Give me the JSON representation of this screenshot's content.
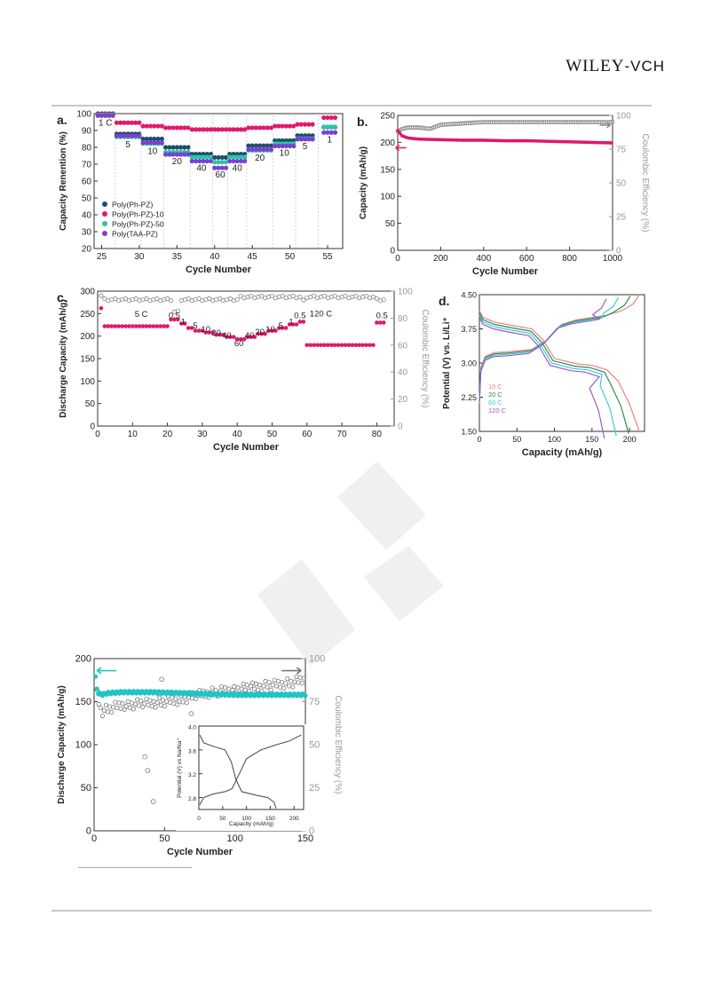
{
  "header": {
    "publisher_main": "WILEY",
    "publisher_suffix": "-VCH"
  },
  "figures": {
    "a": {
      "chart_data": {
        "type": "scatter",
        "panel_label": "a.",
        "xlabel": "Cycle Number",
        "ylabel": "Capacity Renention (%)",
        "xlim": [
          24,
          57
        ],
        "ylim": [
          20,
          100
        ],
        "xticks": [
          "25",
          "30",
          "35",
          "40",
          "45",
          "50",
          "55"
        ],
        "yticks": [
          "20",
          "30",
          "40",
          "50",
          "60",
          "70",
          "80",
          "90",
          "100"
        ],
        "rate_labels": [
          "1 C",
          "5",
          "10",
          "20",
          "40",
          "60",
          "40",
          "20",
          "10",
          "5",
          "1"
        ],
        "segments": [
          {
            "label": "1 C",
            "start": 24.5,
            "end": 26.5,
            "level": [
              100,
              100,
              100,
              100
            ]
          },
          {
            "label": "5",
            "start": 27,
            "end": 30,
            "level": [
              88,
              95,
              87,
              88
            ]
          },
          {
            "label": "10",
            "start": 30.5,
            "end": 33,
            "level": [
              85,
              93,
              83,
              84
            ]
          },
          {
            "label": "20",
            "start": 33.5,
            "end": 36.5,
            "level": [
              80,
              92,
              78,
              77
            ]
          },
          {
            "label": "40",
            "start": 37,
            "end": 39.5,
            "level": [
              76,
              91,
              75,
              73
            ]
          },
          {
            "label": "60",
            "start": 40,
            "end": 41.5,
            "level": [
              74,
              91,
              72,
              69
            ]
          },
          {
            "label": "40",
            "start": 42,
            "end": 44,
            "level": [
              76,
              91,
              75,
              73
            ]
          },
          {
            "label": "20",
            "start": 44.5,
            "end": 47.5,
            "level": [
              81,
              92,
              79,
              80
            ]
          },
          {
            "label": "10",
            "start": 48,
            "end": 50.5,
            "level": [
              84,
              93,
              83,
              82
            ]
          },
          {
            "label": "5",
            "start": 51,
            "end": 53,
            "level": [
              87,
              94,
              86,
              86
            ]
          },
          {
            "label": "1",
            "start": 54.5,
            "end": 56,
            "level": [
              92,
              98,
              93,
              90
            ]
          }
        ],
        "series": [
          {
            "name": "Poly(Ph-PZ)",
            "color": "#1f4e6b"
          },
          {
            "name": "Poly(Ph-PZ)-10",
            "color": "#e0196a"
          },
          {
            "name": "Poly(Ph-PZ)-50",
            "color": "#2ec4a6"
          },
          {
            "name": "Poly(TAA-PZ)",
            "color": "#7a3fd1"
          }
        ],
        "legend": "bottom-left"
      }
    },
    "b": {
      "chart_data": {
        "type": "scatter",
        "panel_label": "b.",
        "xlabel": "Cycle Number",
        "ylabel": "Capacity (mAh/g)",
        "ylabel_right": "Coulombic Efficiency (%)",
        "xlim": [
          0,
          1000
        ],
        "ylim": [
          0,
          250
        ],
        "ylim_right": [
          0,
          100
        ],
        "xticks": [
          "0",
          "200",
          "400",
          "600",
          "800",
          "1000"
        ],
        "yticks": [
          "0",
          "50",
          "100",
          "150",
          "200",
          "250"
        ],
        "yticks_right": [
          "0",
          "25",
          "50",
          "75",
          "100"
        ],
        "series": [
          {
            "name": "Capacity",
            "axis": "left",
            "color": "#e0196a",
            "x": [
              0,
              20,
              50,
              100,
              200,
              300,
              400,
              500,
              600,
              700,
              800,
              900,
              1000
            ],
            "y": [
              222,
              212,
              208,
              206,
              205,
              204,
              204,
              203,
              203,
              202,
              201,
              200,
              199
            ]
          },
          {
            "name": "Coulombic Efficiency",
            "axis": "right",
            "color": "#888888",
            "x": [
              0,
              20,
              50,
              100,
              150,
              200,
              300,
              400,
              500,
              600,
              700,
              800,
              900,
              1000
            ],
            "y": [
              88,
              90,
              91,
              91,
              90,
              93,
              94,
              95,
              95,
              95,
              95,
              95,
              95,
              95
            ]
          }
        ]
      }
    },
    "c": {
      "chart_data": {
        "type": "scatter",
        "panel_label": "c.",
        "xlabel": "Cycle Number",
        "ylabel": "Discharge Capacity (mAh/g)",
        "ylabel_right": "Coulombic Efficiency (%)",
        "xlim": [
          0,
          85
        ],
        "ylim": [
          0,
          300
        ],
        "ylim_right": [
          0,
          100
        ],
        "xticks": [
          "0",
          "10",
          "20",
          "30",
          "40",
          "50",
          "60",
          "70",
          "80"
        ],
        "yticks": [
          "0",
          "50",
          "100",
          "150",
          "200",
          "250",
          "300"
        ],
        "yticks_right": [
          "0",
          "20",
          "40",
          "60",
          "80",
          "100"
        ],
        "rate_labels": [
          "5 C",
          "0.5",
          "1",
          "5",
          "10",
          "20",
          "40",
          "60",
          "40",
          "20",
          "10",
          "5",
          "1",
          "0.5",
          "120 C",
          "0.5"
        ],
        "capacity_segments": [
          {
            "start": 1,
            "end": 1,
            "value": 262
          },
          {
            "start": 2,
            "end": 20,
            "value": 222
          },
          {
            "start": 21,
            "end": 23,
            "value": 237
          },
          {
            "start": 24,
            "end": 25,
            "value": 228
          },
          {
            "start": 26,
            "end": 27,
            "value": 218
          },
          {
            "start": 28,
            "end": 30,
            "value": 212
          },
          {
            "start": 31,
            "end": 33,
            "value": 208
          },
          {
            "start": 34,
            "end": 36,
            "value": 203
          },
          {
            "start": 37,
            "end": 39,
            "value": 198
          },
          {
            "start": 40,
            "end": 42,
            "value": 193
          },
          {
            "start": 43,
            "end": 45,
            "value": 198
          },
          {
            "start": 46,
            "end": 48,
            "value": 205
          },
          {
            "start": 49,
            "end": 51,
            "value": 212
          },
          {
            "start": 52,
            "end": 54,
            "value": 218
          },
          {
            "start": 55,
            "end": 57,
            "value": 226
          },
          {
            "start": 58,
            "end": 59,
            "value": 232
          },
          {
            "start": 60,
            "end": 79,
            "value": 180
          },
          {
            "start": 80,
            "end": 82,
            "value": 230
          }
        ],
        "ce_segments": [
          {
            "start": 1,
            "end": 1,
            "value": 96
          },
          {
            "start": 2,
            "end": 21,
            "value": 93
          },
          {
            "start": 22,
            "end": 23,
            "value": 84
          },
          {
            "start": 24,
            "end": 40,
            "value": 93
          },
          {
            "start": 41,
            "end": 58,
            "value": 95
          },
          {
            "start": 59,
            "end": 59,
            "value": 92
          },
          {
            "start": 60,
            "end": 79,
            "value": 95
          },
          {
            "start": 80,
            "end": 82,
            "value": 93
          }
        ],
        "colors": {
          "capacity": "#e0196a",
          "ce": "#888888"
        }
      }
    },
    "d": {
      "chart_data": {
        "type": "line",
        "panel_label": "d.",
        "xlabel": "Capacity (mAh/g)",
        "ylabel": "Potential (V) vs. Li/Li⁺",
        "xlim": [
          0,
          220
        ],
        "ylim": [
          1.5,
          4.5
        ],
        "xticks": [
          "0",
          "50",
          "100",
          "150",
          "200"
        ],
        "yticks": [
          "1.50",
          "2.25",
          "3.00",
          "3.75",
          "4.50"
        ],
        "series": [
          {
            "name": "10 C",
            "color": "#f08080",
            "charge_end": 213,
            "discharge_end": 213
          },
          {
            "name": "20 C",
            "color": "#2e8b57",
            "charge_end": 205,
            "discharge_end": 203
          },
          {
            "name": "60 C",
            "color": "#3ad0d0",
            "charge_end": 193,
            "discharge_end": 190
          },
          {
            "name": "120 C",
            "color": "#9b59d0",
            "charge_end": 180,
            "discharge_end": 177
          }
        ]
      }
    },
    "e": {
      "chart_data": {
        "type": "scatter",
        "xlabel": "Cycle Number",
        "ylabel": "Discharge Capacity (mAh/g)",
        "ylabel_right": "Coulombic Efficiency (%)",
        "xlim": [
          0,
          150
        ],
        "ylim": [
          0,
          200
        ],
        "ylim_right": [
          0,
          100
        ],
        "xticks": [
          "0",
          "50",
          "100",
          "150"
        ],
        "yticks": [
          "0",
          "50",
          "100",
          "150",
          "200"
        ],
        "yticks_right": [
          "0",
          "25",
          "50",
          "75",
          "100"
        ],
        "capacity": {
          "color": "#20c4c4",
          "x": [
            1,
            2,
            3,
            5,
            10,
            20,
            40,
            60,
            80,
            100,
            120,
            140,
            150
          ],
          "y": [
            178,
            165,
            160,
            158,
            160,
            161,
            161,
            160,
            159,
            158,
            158,
            158,
            158
          ]
        },
        "ce_outliers": [
          {
            "x": 36,
            "y": 43
          },
          {
            "x": 38,
            "y": 35
          },
          {
            "x": 42,
            "y": 17
          },
          {
            "x": 48,
            "y": 88
          },
          {
            "x": 69,
            "y": 68
          }
        ],
        "ce_trend": {
          "x": [
            2,
            5,
            10,
            20,
            40,
            60,
            80,
            100,
            120,
            140,
            150
          ],
          "y": [
            80,
            69,
            71,
            73,
            74,
            76,
            80,
            82,
            84,
            86,
            88
          ]
        },
        "inset": {
          "xlabel": "Capacity (mAh/g)",
          "ylabel": "Potential (V) vs Na/Na⁺",
          "xlim": [
            0,
            220
          ],
          "ylim": [
            2.6,
            4.0
          ],
          "xticks": [
            "0",
            "50",
            "100",
            "150",
            "200"
          ],
          "yticks": [
            "2.8",
            "3.2",
            "3.6",
            "4.0"
          ]
        }
      }
    }
  }
}
